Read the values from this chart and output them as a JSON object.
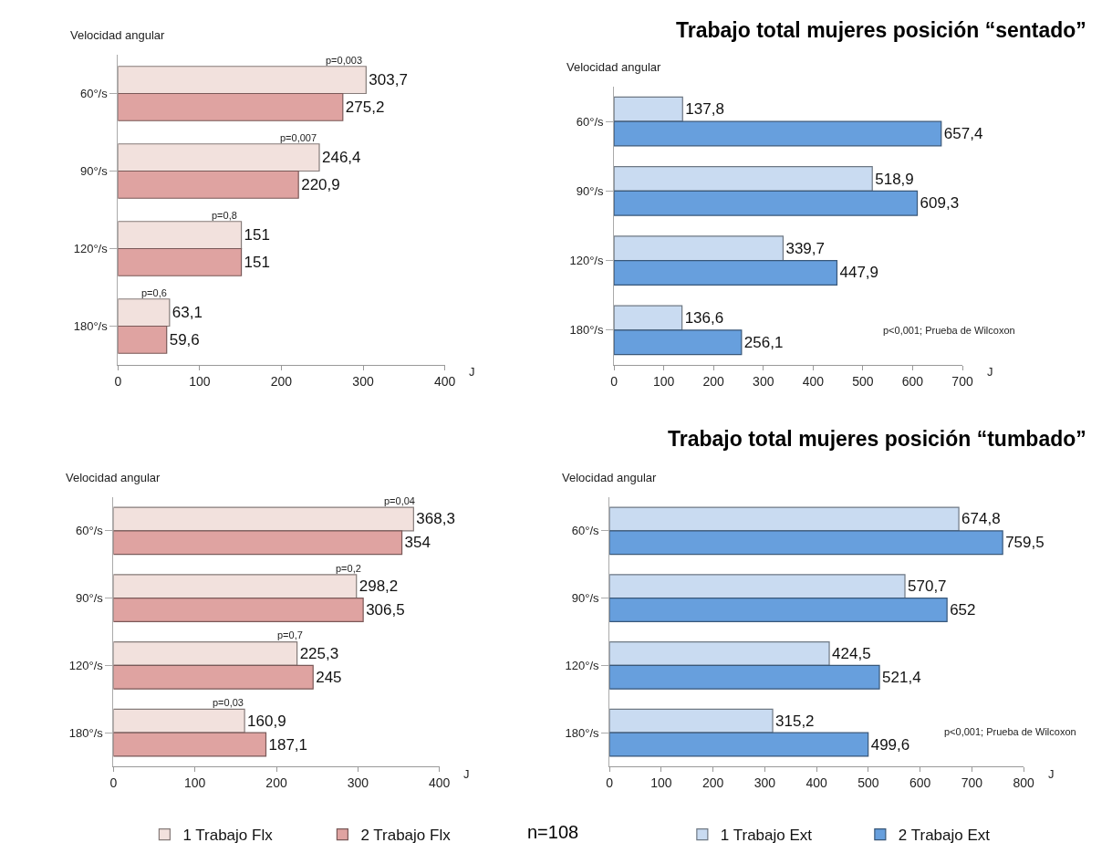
{
  "chart_data": [
    {
      "type": "bar",
      "orientation": "horizontal",
      "ylabel": "Velocidad angular",
      "xlabel": "J",
      "categories": [
        "60°/s",
        "90°/s",
        "120°/s",
        "180°/s"
      ],
      "xlim": [
        0,
        400
      ],
      "xticks": [
        0,
        100,
        200,
        300,
        400
      ],
      "grid": false,
      "legend": false,
      "series": [
        {
          "color": "#f2e1dd",
          "values": [
            303.7,
            246.4,
            151,
            63.1
          ],
          "value_labels": [
            "303,7",
            "246,4",
            "151",
            "63,1"
          ]
        },
        {
          "color": "#dfa3a1",
          "values": [
            275.2,
            220.9,
            151,
            59.6
          ],
          "value_labels": [
            "275,2",
            "220,9",
            "151",
            "59,6"
          ]
        }
      ],
      "annotations": [
        {
          "text": "p=0,003",
          "x": 277,
          "y": "60°/s"
        },
        {
          "text": "p=0,007",
          "x": 221,
          "y": "90°/s"
        },
        {
          "text": "p=0,8",
          "x": 130,
          "y": "120°/s"
        },
        {
          "text": "p=0,6",
          "x": 44,
          "y": "180°/s"
        }
      ]
    },
    {
      "type": "bar",
      "orientation": "horizontal",
      "title": "Trabajo total mujeres posición “sentado”",
      "ylabel": "Velocidad angular",
      "xlabel": "J",
      "categories": [
        "60°/s",
        "90°/s",
        "120°/s",
        "180°/s"
      ],
      "xlim": [
        0,
        700
      ],
      "xticks": [
        0,
        100,
        200,
        300,
        400,
        500,
        600,
        700
      ],
      "grid": false,
      "legend": false,
      "series": [
        {
          "color": "#c9dbf1",
          "values": [
            137.8,
            518.9,
            339.7,
            136.6
          ],
          "value_labels": [
            "137,8",
            "518,9",
            "339,7",
            "136,6"
          ]
        },
        {
          "color": "#679fdd",
          "values": [
            657.4,
            609.3,
            447.9,
            256.1
          ],
          "value_labels": [
            "657,4",
            "609,3",
            "447,9",
            "256,1"
          ]
        }
      ],
      "annotations": [
        "p<0,001; Prueba de Wilcoxon"
      ]
    },
    {
      "type": "bar",
      "orientation": "horizontal",
      "ylabel": "Velocidad angular",
      "xlabel": "J",
      "categories": [
        "60°/s",
        "90°/s",
        "120°/s",
        "180°/s"
      ],
      "xlim": [
        0,
        400
      ],
      "xticks": [
        0,
        100,
        200,
        300,
        400
      ],
      "grid": false,
      "legend": "bottom",
      "series": [
        {
          "name": "1 Trabajo Flx",
          "color": "#f2e1dd",
          "values": [
            368.3,
            298.2,
            225.3,
            160.9
          ],
          "value_labels": [
            "368,3",
            "298,2",
            "225,3",
            "160,9"
          ]
        },
        {
          "name": "2 Trabajo Flx",
          "color": "#dfa3a1",
          "values": [
            354,
            306.5,
            245,
            187.1
          ],
          "value_labels": [
            "354",
            "306,5",
            "245",
            "187,1"
          ]
        }
      ],
      "annotations": [
        {
          "text": "p=0,04",
          "x": 351,
          "y": "60°/s"
        },
        {
          "text": "p=0,2",
          "x": 288,
          "y": "90°/s"
        },
        {
          "text": "p=0,7",
          "x": 217,
          "y": "120°/s"
        },
        {
          "text": "p=0,03",
          "x": 141,
          "y": "180°/s"
        },
        "n=108"
      ]
    },
    {
      "type": "bar",
      "orientation": "horizontal",
      "title": "Trabajo total mujeres posición “tumbado”",
      "ylabel": "Velocidad angular",
      "xlabel": "J",
      "categories": [
        "60°/s",
        "90°/s",
        "120°/s",
        "180°/s"
      ],
      "xlim": [
        0,
        800
      ],
      "xticks": [
        0,
        100,
        200,
        300,
        400,
        500,
        600,
        700,
        800
      ],
      "grid": false,
      "legend": "bottom",
      "series": [
        {
          "name": "1 Trabajo Ext",
          "color": "#c9dbf1",
          "values": [
            674.8,
            570.7,
            424.5,
            315.2
          ],
          "value_labels": [
            "674,8",
            "570,7",
            "424,5",
            "315,2"
          ]
        },
        {
          "name": "2 Trabajo Ext",
          "color": "#679fdd",
          "values": [
            759.5,
            652,
            521.4,
            499.6
          ],
          "value_labels": [
            "759,5",
            "652",
            "521,4",
            "499,6"
          ]
        }
      ],
      "annotations": [
        "p<0,001; Prueba de Wilcoxon"
      ]
    }
  ]
}
